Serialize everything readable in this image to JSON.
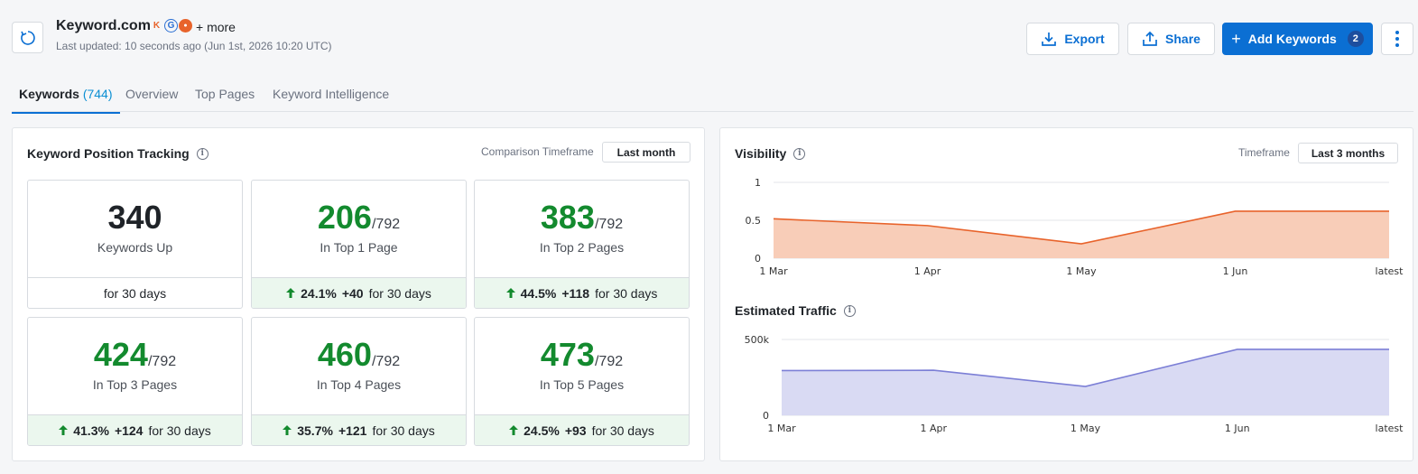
{
  "header": {
    "site_title": "Keyword.com",
    "more_label": "+ more",
    "last_updated": "Last updated: 10 seconds ago (Jun 1st, 2026 10:20 UTC)",
    "favicons": [
      {
        "icon": "k-favicon-icon",
        "glyph": "K",
        "color": "#e8632b"
      },
      {
        "icon": "g-favicon-icon",
        "glyph": "G",
        "color": "#2b6fd3"
      },
      {
        "icon": "badge-favicon-icon",
        "glyph": "●",
        "color": "#e8632b"
      }
    ],
    "export_label": "Export",
    "share_label": "Share",
    "add_keywords_label": "Add Keywords",
    "add_keywords_badge": "2"
  },
  "tabs": [
    {
      "label": "Keywords",
      "count": "(744)",
      "active": true
    },
    {
      "label": "Overview"
    },
    {
      "label": "Top Pages"
    },
    {
      "label": "Keyword Intelligence"
    }
  ],
  "position_tracking": {
    "title": "Keyword Position Tracking",
    "timeframe_label": "Comparison Timeframe",
    "timeframe_value": "Last month",
    "tiles": [
      {
        "value": "340",
        "denom": "",
        "label": "Keywords Up",
        "pct": "",
        "delta": "",
        "period": "for 30 days",
        "positive": false
      },
      {
        "value": "206",
        "denom": "/792",
        "label": "In Top 1 Page",
        "pct": "24.1%",
        "delta": "+40",
        "period": "for 30 days",
        "positive": true
      },
      {
        "value": "383",
        "denom": "/792",
        "label": "In Top 2 Pages",
        "pct": "44.5%",
        "delta": "+118",
        "period": "for 30 days",
        "positive": true
      },
      {
        "value": "424",
        "denom": "/792",
        "label": "In Top 3 Pages",
        "pct": "41.3%",
        "delta": "+124",
        "period": "for 30 days",
        "positive": true
      },
      {
        "value": "460",
        "denom": "/792",
        "label": "In Top 4 Pages",
        "pct": "35.7%",
        "delta": "+121",
        "period": "for 30 days",
        "positive": true
      },
      {
        "value": "473",
        "denom": "/792",
        "label": "In Top 5 Pages",
        "pct": "24.5%",
        "delta": "+93",
        "period": "for 30 days",
        "positive": true
      }
    ]
  },
  "visibility": {
    "title": "Visibility",
    "timeframe_label": "Timeframe",
    "timeframe_value": "Last 3 months"
  },
  "traffic": {
    "title": "Estimated Traffic"
  },
  "colors": {
    "accent": "#0b6fd3",
    "positive": "#138a2e",
    "visibility_line": "#e8632b",
    "visibility_fill": "#f8cdb8",
    "traffic_line": "#7c7fd6",
    "traffic_fill": "#d9daf3"
  },
  "chart_data": [
    {
      "type": "area",
      "name": "visibility",
      "categories": [
        "1 Mar",
        "1 Apr",
        "1 May",
        "1 Jun",
        "latest"
      ],
      "values": [
        0.52,
        0.43,
        0.19,
        0.62,
        0.62
      ],
      "yticks": [
        "0",
        "0.5",
        "1"
      ],
      "ylim": [
        0,
        1
      ],
      "grid": true
    },
    {
      "type": "area",
      "name": "traffic",
      "categories": [
        "1 Mar",
        "1 Apr",
        "1 May",
        "1 Jun",
        "latest"
      ],
      "values": [
        295000,
        297000,
        190000,
        435000,
        435000
      ],
      "yticks": [
        "0",
        "500k"
      ],
      "ylim": [
        0,
        500000
      ],
      "grid": true
    }
  ]
}
